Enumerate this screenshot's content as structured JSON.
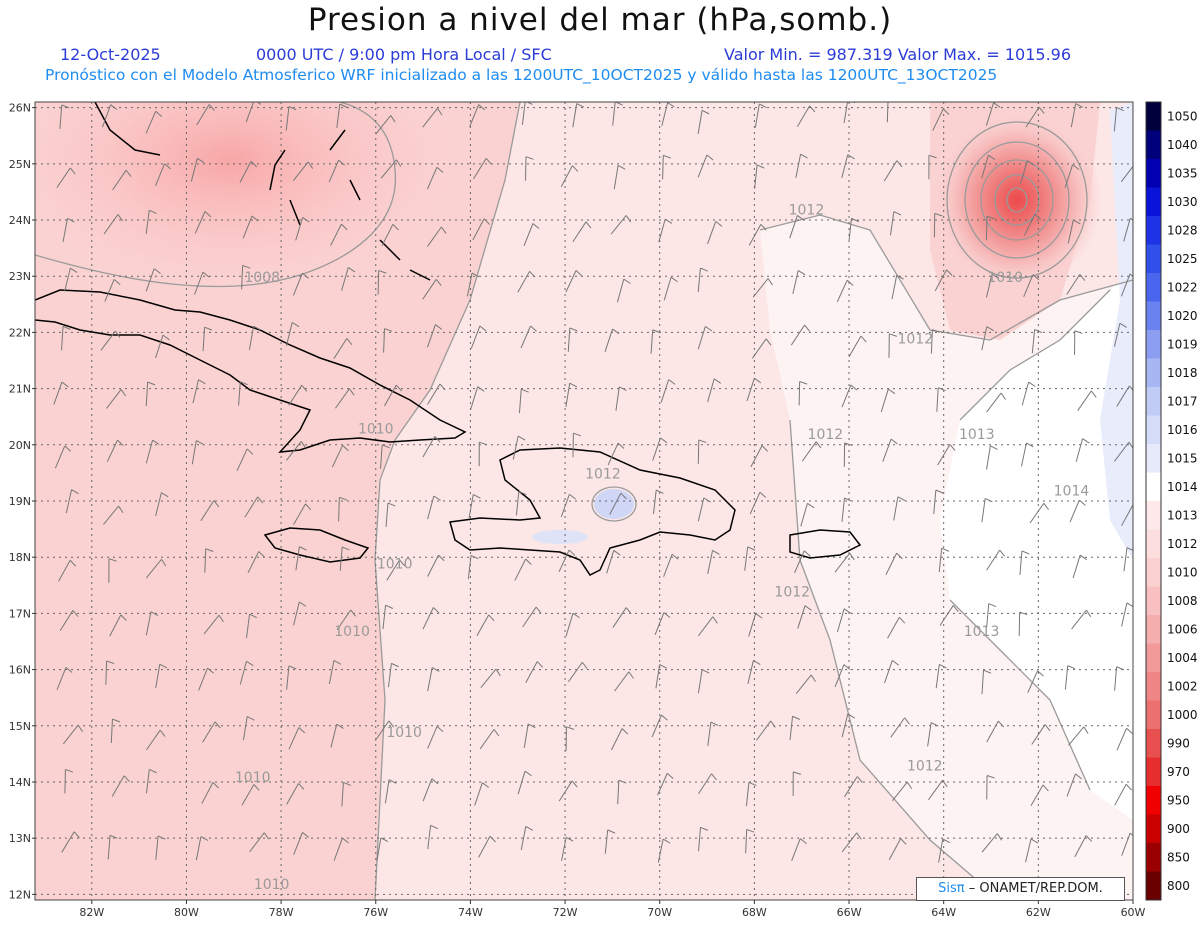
{
  "header": {
    "title": "Presion a nivel del mar (hPa,somb.)",
    "date": "12-Oct-2025",
    "time": "0000 UTC / 9:00 pm Hora Local / SFC",
    "minmax": "Valor Min. = 987.319   Valor Max. = 1015.96",
    "model_line": "Pronóstico con el Modelo Atmosferico WRF inicializado a las 1200UTC_10OCT2025 y válido hasta las  1200UTC_13OCT2025"
  },
  "axes": {
    "lat_labels": [
      "26N",
      "25N",
      "24N",
      "23N",
      "22N",
      "21N",
      "20N",
      "19N",
      "18N",
      "17N",
      "16N",
      "15N",
      "14N",
      "13N",
      "12N"
    ],
    "lon_labels": [
      "82W",
      "80W",
      "78W",
      "76W",
      "74W",
      "72W",
      "70W",
      "68W",
      "66W",
      "64W",
      "62W",
      "60W"
    ]
  },
  "contour_labels": [
    {
      "text": "1008",
      "lon": -78.4,
      "lat": 22.9
    },
    {
      "text": "1010",
      "lon": -76.0,
      "lat": 20.2
    },
    {
      "text": "1010",
      "lon": -75.6,
      "lat": 17.8
    },
    {
      "text": "1010",
      "lon": -76.5,
      "lat": 16.6
    },
    {
      "text": "1010",
      "lon": -75.4,
      "lat": 14.8
    },
    {
      "text": "1010",
      "lon": -78.6,
      "lat": 14.0
    },
    {
      "text": "1010",
      "lon": -78.2,
      "lat": 12.1
    },
    {
      "text": "1012",
      "lon": -71.2,
      "lat": 19.4
    },
    {
      "text": "1012",
      "lon": -66.5,
      "lat": 20.1
    },
    {
      "text": "1012",
      "lon": -67.2,
      "lat": 17.3
    },
    {
      "text": "1012",
      "lon": -66.9,
      "lat": 24.1
    },
    {
      "text": "1012",
      "lon": -64.6,
      "lat": 21.8
    },
    {
      "text": "1012",
      "lon": -64.4,
      "lat": 14.2
    },
    {
      "text": "1010",
      "lon": -62.7,
      "lat": 22.9
    },
    {
      "text": "1013",
      "lon": -63.3,
      "lat": 20.1
    },
    {
      "text": "1014",
      "lon": -61.3,
      "lat": 19.1
    },
    {
      "text": "1013",
      "lon": -63.2,
      "lat": 16.6
    }
  ],
  "colorbar": {
    "levels": [
      "1050",
      "1040",
      "1035",
      "1030",
      "1028",
      "1025",
      "1022",
      "1020",
      "1019",
      "1018",
      "1017",
      "1016",
      "1015",
      "1014",
      "1013",
      "1012",
      "1010",
      "1008",
      "1006",
      "1004",
      "1002",
      "1000",
      "990",
      "970",
      "950",
      "900",
      "850",
      "800"
    ],
    "colors": [
      "#00003d",
      "#00007a",
      "#0000b0",
      "#0a14d8",
      "#1e32e6",
      "#3050ea",
      "#4a66ee",
      "#6a82f0",
      "#8c9ef2",
      "#a8b6f4",
      "#c0cbf6",
      "#d4dcf8",
      "#e6eafb",
      "#ffffff",
      "#fde9e9",
      "#fcdede",
      "#fbd0d0",
      "#f8c0c0",
      "#f5aeae",
      "#f29a9a",
      "#ef8585",
      "#ec7070",
      "#e84f4f",
      "#e62e2e",
      "#f00000",
      "#c80000",
      "#9a0000",
      "#6a0000"
    ]
  },
  "stats": {
    "min": 987.319,
    "max": 1015.96,
    "low_center": {
      "lon": -62.3,
      "lat": 24.0
    }
  },
  "credit": {
    "brand": "Sisπ",
    "text": "– ONAMET/REP.DOM."
  }
}
